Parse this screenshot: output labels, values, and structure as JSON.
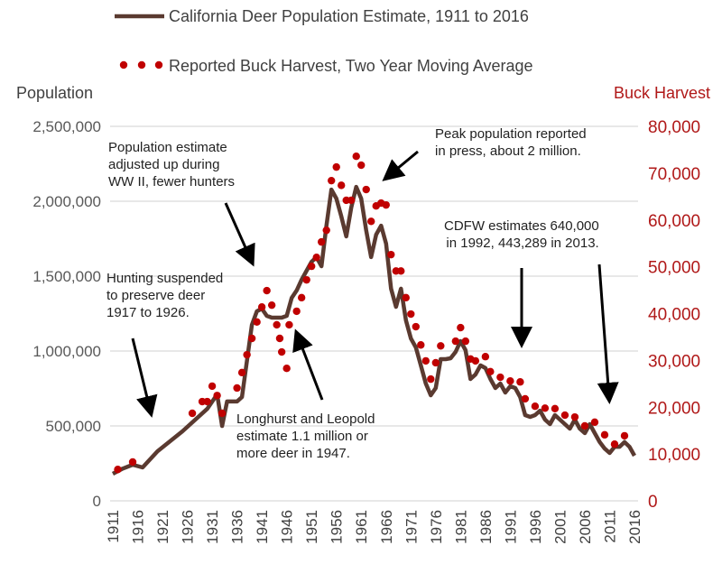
{
  "legend": {
    "population": "California Deer Population Estimate, 1911 to 2016",
    "harvest": "Reported Buck Harvest, Two Year Moving Average"
  },
  "annotations": {
    "ww2": [
      "Population estimate",
      "adjusted up during",
      "WW II, fewer hunters"
    ],
    "hunting": [
      "Hunting suspended",
      "to preserve deer",
      "1917 to 1926."
    ],
    "longhurst": [
      "Longhurst and Leopold",
      "estimate 1.1 million or",
      "more deer in 1947."
    ],
    "peak": [
      "Peak population reported",
      "in press, about 2 million."
    ],
    "cdfw": [
      "CDFW estimates 640,000",
      "in 1992, 443,289 in 2013."
    ]
  },
  "colors": {
    "population": "#5a3a30",
    "harvest": "#c00000",
    "left_axis": "#595959",
    "right_axis": "#b01818",
    "grid": "#d9d9d9"
  },
  "chart_data": {
    "type": "line",
    "title": "",
    "xlabel": "",
    "ylabel": "Population",
    "y2label": "Buck Harvest",
    "xlim": [
      1911,
      2016
    ],
    "ylim": [
      0,
      2500000
    ],
    "y2lim": [
      0,
      80000
    ],
    "grid": true,
    "legend_position": "top",
    "x_ticks": [
      "1911",
      "1916",
      "1921",
      "1926",
      "1931",
      "1936",
      "1941",
      "1946",
      "1951",
      "1956",
      "1961",
      "1966",
      "1971",
      "1976",
      "1981",
      "1986",
      "1991",
      "1996",
      "2001",
      "2006",
      "2011",
      "2016"
    ],
    "y_ticks": [
      "0",
      "500,000",
      "1,000,000",
      "1,500,000",
      "2,000,000",
      "2,500,000"
    ],
    "y2_ticks": [
      "0",
      "10,000",
      "20,000",
      "30,000",
      "40,000",
      "50,000",
      "60,000",
      "70,000",
      "80,000"
    ],
    "series": [
      {
        "name": "California Deer Population Estimate, 1911 to 2016",
        "axis": "left",
        "style": "line",
        "points": [
          [
            1911,
            181000
          ],
          [
            1913,
            215000
          ],
          [
            1915,
            241000
          ],
          [
            1917,
            223000
          ],
          [
            1920,
            331000
          ],
          [
            1925,
            464000
          ],
          [
            1930,
            614000
          ],
          [
            1932,
            711000
          ],
          [
            1933,
            500000
          ],
          [
            1934,
            663000
          ],
          [
            1936,
            663000
          ],
          [
            1937,
            693000
          ],
          [
            1938,
            934000
          ],
          [
            1939,
            1175000
          ],
          [
            1940,
            1265000
          ],
          [
            1941,
            1283000
          ],
          [
            1942,
            1235000
          ],
          [
            1943,
            1223000
          ],
          [
            1945,
            1223000
          ],
          [
            1946,
            1235000
          ],
          [
            1947,
            1355000
          ],
          [
            1948,
            1404000
          ],
          [
            1949,
            1476000
          ],
          [
            1950,
            1536000
          ],
          [
            1951,
            1596000
          ],
          [
            1952,
            1627000
          ],
          [
            1953,
            1566000
          ],
          [
            1954,
            1837000
          ],
          [
            1955,
            2078000
          ],
          [
            1956,
            2018000
          ],
          [
            1957,
            1898000
          ],
          [
            1958,
            1765000
          ],
          [
            1959,
            1958000
          ],
          [
            1960,
            2096000
          ],
          [
            1961,
            2018000
          ],
          [
            1962,
            1807000
          ],
          [
            1963,
            1627000
          ],
          [
            1964,
            1777000
          ],
          [
            1965,
            1837000
          ],
          [
            1966,
            1717000
          ],
          [
            1967,
            1416000
          ],
          [
            1968,
            1295000
          ],
          [
            1969,
            1416000
          ],
          [
            1970,
            1205000
          ],
          [
            1971,
            1084000
          ],
          [
            1972,
            1024000
          ],
          [
            1973,
            904000
          ],
          [
            1974,
            783000
          ],
          [
            1975,
            705000
          ],
          [
            1976,
            753000
          ],
          [
            1977,
            946000
          ],
          [
            1978,
            946000
          ],
          [
            1979,
            952000
          ],
          [
            1980,
            994000
          ],
          [
            1981,
            1066000
          ],
          [
            1982,
            1006000
          ],
          [
            1983,
            813000
          ],
          [
            1984,
            843000
          ],
          [
            1985,
            904000
          ],
          [
            1986,
            886000
          ],
          [
            1987,
            813000
          ],
          [
            1988,
            753000
          ],
          [
            1989,
            783000
          ],
          [
            1990,
            723000
          ],
          [
            1991,
            765000
          ],
          [
            1992,
            753000
          ],
          [
            1993,
            693000
          ],
          [
            1994,
            572000
          ],
          [
            1995,
            560000
          ],
          [
            1996,
            572000
          ],
          [
            1997,
            602000
          ],
          [
            1998,
            542000
          ],
          [
            1999,
            512000
          ],
          [
            2000,
            572000
          ],
          [
            2001,
            542000
          ],
          [
            2002,
            512000
          ],
          [
            2003,
            482000
          ],
          [
            2004,
            542000
          ],
          [
            2005,
            482000
          ],
          [
            2006,
            452000
          ],
          [
            2007,
            512000
          ],
          [
            2008,
            452000
          ],
          [
            2009,
            392000
          ],
          [
            2010,
            349000
          ],
          [
            2011,
            319000
          ],
          [
            2012,
            361000
          ],
          [
            2013,
            361000
          ],
          [
            2014,
            392000
          ],
          [
            2015,
            361000
          ],
          [
            2016,
            301000
          ]
        ]
      },
      {
        "name": "Reported Buck Harvest, Two Year Moving Average",
        "axis": "right",
        "style": "dots",
        "points": [
          [
            1912,
            6700
          ],
          [
            1915,
            8300
          ],
          [
            1927,
            18700
          ],
          [
            1929,
            21200
          ],
          [
            1930,
            21200
          ],
          [
            1931,
            24500
          ],
          [
            1932,
            22500
          ],
          [
            1933,
            18700
          ],
          [
            1936,
            24100
          ],
          [
            1937,
            27400
          ],
          [
            1938,
            31200
          ],
          [
            1939,
            34700
          ],
          [
            1940,
            38200
          ],
          [
            1941,
            41400
          ],
          [
            1942,
            44900
          ],
          [
            1943,
            41800
          ],
          [
            1944,
            37600
          ],
          [
            1944.6,
            34700
          ],
          [
            1945,
            31800
          ],
          [
            1946,
            28300
          ],
          [
            1946.5,
            37600
          ],
          [
            1948,
            40500
          ],
          [
            1949,
            43400
          ],
          [
            1950,
            47200
          ],
          [
            1951,
            50100
          ],
          [
            1952,
            52000
          ],
          [
            1953,
            55300
          ],
          [
            1954,
            57800
          ],
          [
            1955,
            68400
          ],
          [
            1956,
            71300
          ],
          [
            1957,
            67400
          ],
          [
            1958,
            64200
          ],
          [
            1959,
            64200
          ],
          [
            1960,
            73600
          ],
          [
            1961,
            71700
          ],
          [
            1962,
            66500
          ],
          [
            1963,
            59700
          ],
          [
            1964,
            63000
          ],
          [
            1965,
            63600
          ],
          [
            1966,
            63200
          ],
          [
            1967,
            52600
          ],
          [
            1968,
            49100
          ],
          [
            1969,
            49100
          ],
          [
            1970,
            43400
          ],
          [
            1971,
            39900
          ],
          [
            1972,
            37200
          ],
          [
            1973,
            33300
          ],
          [
            1974,
            29900
          ],
          [
            1975,
            26000
          ],
          [
            1976,
            29500
          ],
          [
            1977,
            33100
          ],
          [
            1980,
            34100
          ],
          [
            1981,
            37000
          ],
          [
            1982,
            34100
          ],
          [
            1983,
            30300
          ],
          [
            1984,
            29900
          ],
          [
            1986,
            30800
          ],
          [
            1987,
            27600
          ],
          [
            1989,
            26400
          ],
          [
            1991,
            25600
          ],
          [
            1993,
            25400
          ],
          [
            1994,
            21800
          ],
          [
            1996,
            20200
          ],
          [
            1998,
            19800
          ],
          [
            2000,
            19700
          ],
          [
            2002,
            18300
          ],
          [
            2004,
            17900
          ],
          [
            2006,
            16000
          ],
          [
            2008,
            16800
          ],
          [
            2010,
            14100
          ],
          [
            2012,
            12100
          ],
          [
            2014,
            13900
          ]
        ]
      }
    ]
  }
}
